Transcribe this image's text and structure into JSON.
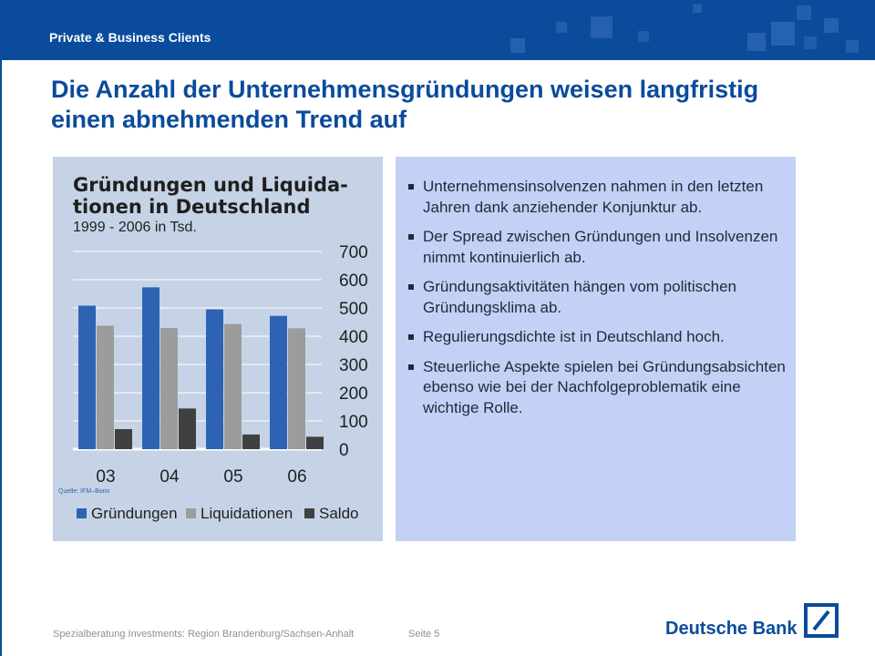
{
  "header": {
    "title": "Private & Business Clients"
  },
  "slide": {
    "title": "Die Anzahl der Unternehmensgründungen weisen langfristig einen abnehmenden Trend auf"
  },
  "chart_data": {
    "type": "bar",
    "title": "Gründungen und Liquida-tionen in Deutschland",
    "title_line1": "Gründungen und Liquida-",
    "title_line2": "tionen in Deutschland",
    "subtitle": "1999 - 2006 in Tsd.",
    "categories": [
      "03",
      "04",
      "05",
      "06"
    ],
    "series": [
      {
        "name": "Gründungen",
        "values": [
          508,
          573,
          495,
          472
        ],
        "color": "#2e63b3"
      },
      {
        "name": "Liquidationen",
        "values": [
          437,
          429,
          443,
          428
        ],
        "color": "#9c9c9c"
      },
      {
        "name": "Saldo",
        "values": [
          71,
          144,
          52,
          44
        ],
        "color": "#404040"
      }
    ],
    "ylim": [
      0,
      700
    ],
    "yticks": [
      0,
      100,
      200,
      300,
      400,
      500,
      600,
      700
    ],
    "source": "Quelle: IFM–Bonn",
    "grid": true,
    "legend": "bottom"
  },
  "bullets": [
    "Unternehmensinsolvenzen nahmen in den letzten Jahren dank anziehender Konjunktur ab.",
    "Der Spread zwischen Gründungen und Insolvenzen nimmt kontinuierlich ab.",
    "Gründungsaktivitäten hängen vom politischen Gründungsklima ab.",
    "Regulierungsdichte ist in Deutschland hoch.",
    "Steuerliche Aspekte spielen bei Gründungsabsichten ebenso wie bei der Nachfolgeproblematik eine wichtige Rolle."
  ],
  "footer": {
    "left": "Spezialberatung Investments: Region Brandenburg/Sachsen-Anhalt",
    "page": "Seite 5",
    "brand": "Deutsche Bank"
  },
  "colors": {
    "brand_blue": "#0a4b9b",
    "chart_bg": "#c6d3e6",
    "bullet_bg": "#c2d1f5"
  }
}
